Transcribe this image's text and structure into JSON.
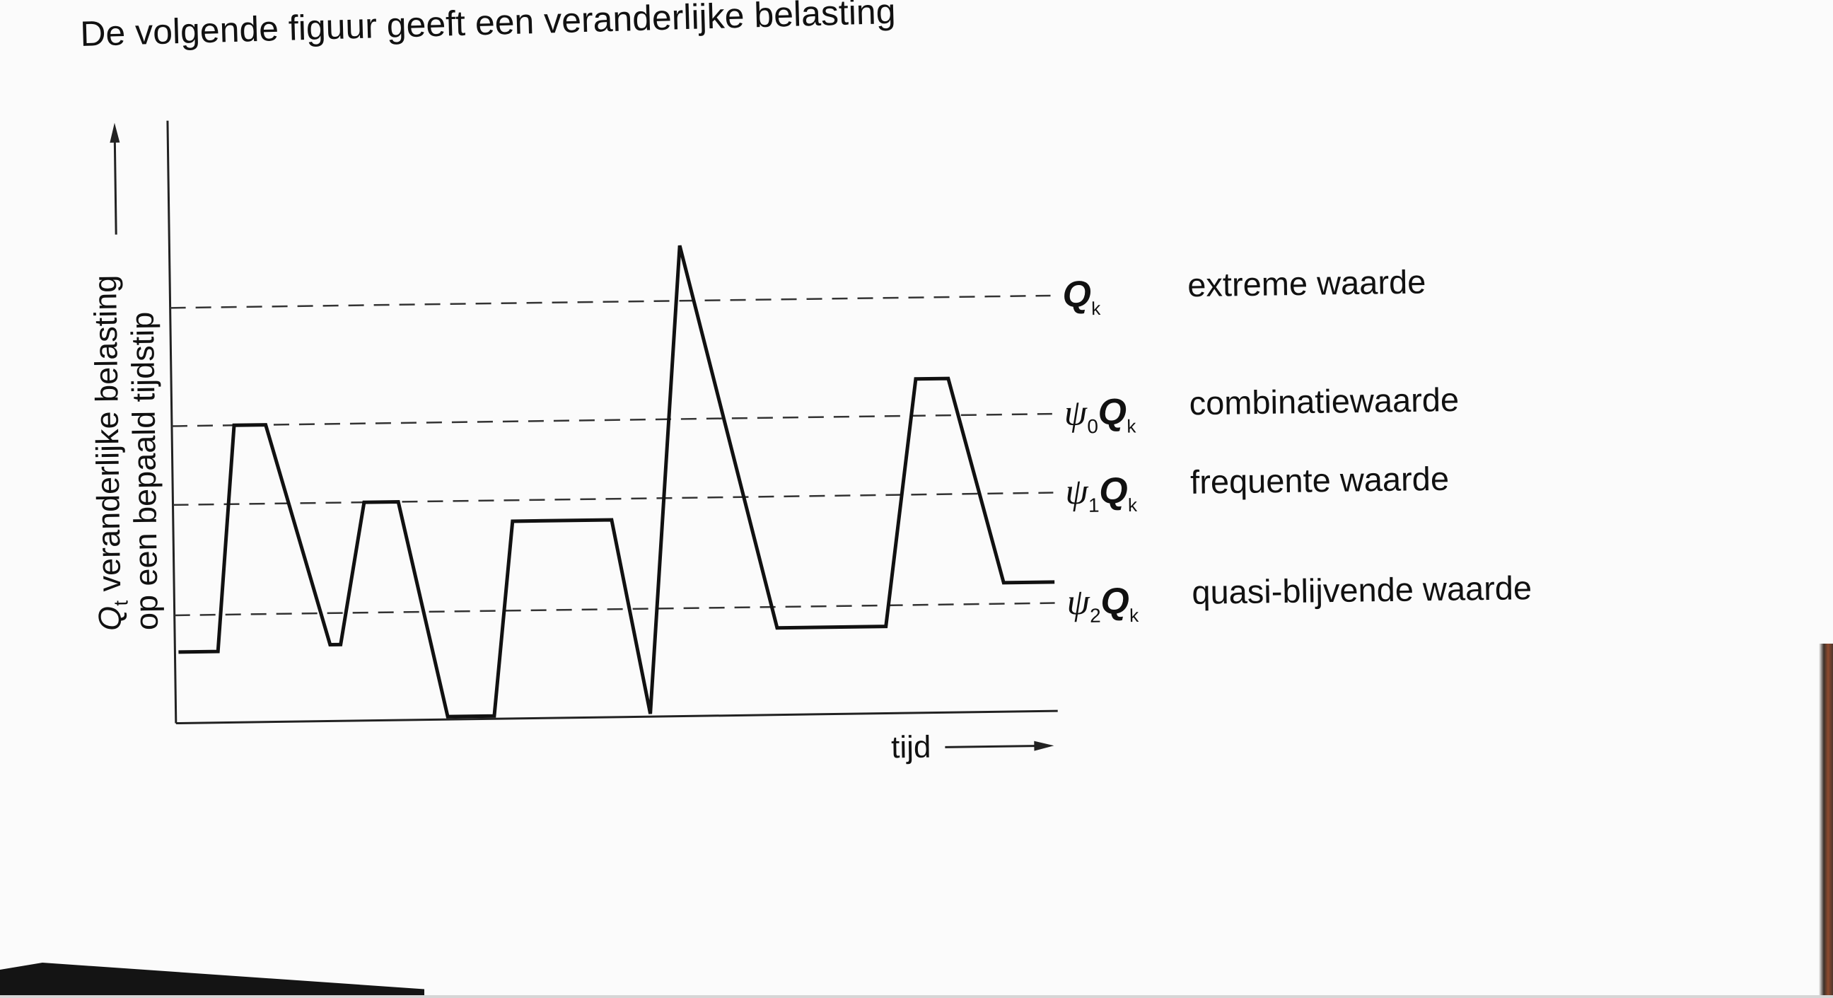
{
  "intro_text": "De volgende figuur geeft een veranderlijke belasting",
  "chart_data": {
    "type": "line",
    "xlabel": "tijd",
    "ylabel_lines": [
      "Q",
      "t",
      " veranderlijke belasting",
      "op een bepaald tijdstip"
    ],
    "xlim": [
      0,
      100
    ],
    "ylim": [
      0,
      100
    ],
    "grid": false,
    "legend": "right",
    "series": [
      {
        "x": [
          0,
          4.5,
          6.7,
          10.3,
          17.3,
          18.5,
          21.4,
          25.3,
          30.6,
          35.9,
          38.3,
          49.6,
          53.7,
          57.8,
          68.3,
          80.7,
          84.5,
          88.2,
          94.2,
          100
        ],
        "y": [
          13,
          13,
          56,
          56,
          14,
          14,
          41,
          41,
          0,
          0,
          37,
          37,
          0,
          89,
          16,
          16,
          63,
          63,
          24,
          24
        ]
      }
    ],
    "reference_lines": [
      {
        "symbol": "Q",
        "subscript": "k",
        "name": "extreme waarde",
        "y": 78.5
      },
      {
        "symbol": "ψ",
        "index": "0",
        "subscript": "k",
        "name": "combinatiewaarde",
        "y": 56
      },
      {
        "symbol": "ψ",
        "index": "1",
        "subscript": "k",
        "name": "frequente waarde",
        "y": 41
      },
      {
        "symbol": "ψ",
        "index": "2",
        "subscript": "k",
        "name": "quasi-blijvende waarde",
        "y": 20
      }
    ]
  }
}
